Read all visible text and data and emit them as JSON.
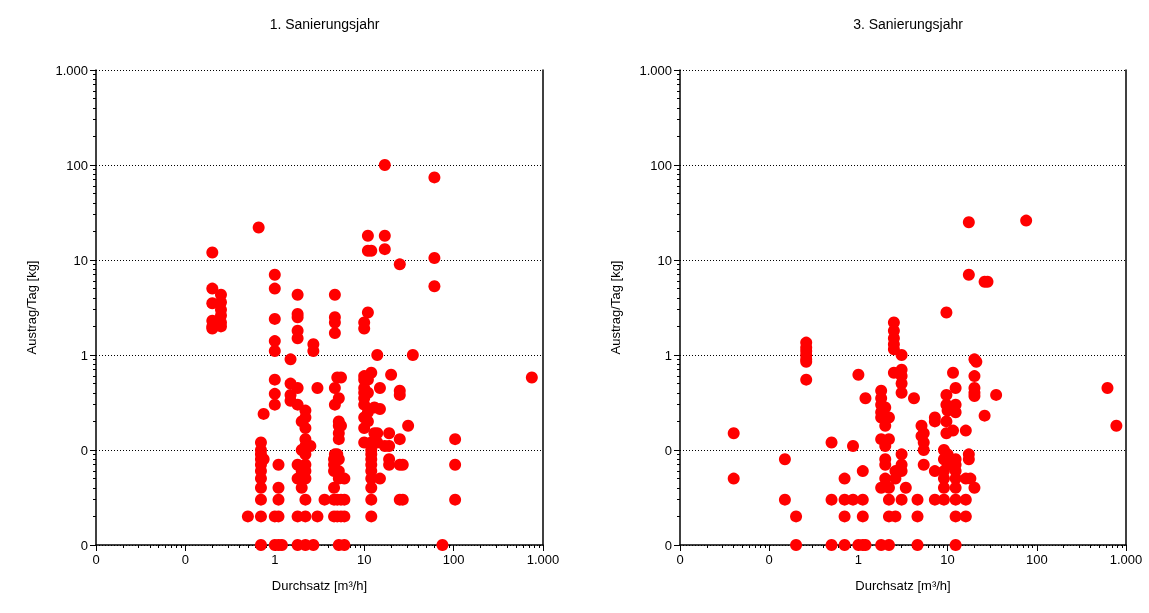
{
  "chart_data": [
    {
      "type": "scatter",
      "title": "1. Sanierungsjahr",
      "xlabel": "Durchsatz [m³/h]",
      "ylabel": "Austrag/Tag [kg]",
      "log": "xy",
      "grid": "y",
      "marker": "circle",
      "xlim": [
        0.01,
        1000
      ],
      "ylim": [
        0.01,
        1000
      ],
      "xticks": [
        {
          "value": 0.01,
          "label": "0"
        },
        {
          "value": 0.1,
          "label": "0"
        },
        1,
        10,
        100,
        {
          "value": 1000,
          "label": "1.000"
        }
      ],
      "yticks": [
        {
          "value": 0.01,
          "label": "0"
        },
        {
          "value": 0.1,
          "label": "0"
        },
        1,
        10,
        100,
        {
          "value": 1000,
          "label": "1.000"
        }
      ],
      "series": [
        {
          "color": "#ff0000",
          "x": [
            0.2,
            0.2,
            0.2,
            0.2,
            0.2,
            0.2,
            0.25,
            0.25,
            0.25,
            0.25,
            0.25,
            0.25,
            0.5,
            0.66,
            0.7,
            0.7,
            0.7,
            0.7,
            0.7,
            0.7,
            0.7,
            0.7,
            0.7,
            0.7,
            0.7,
            0.75,
            0.75,
            1,
            1,
            1,
            1,
            1,
            1,
            1,
            1,
            1,
            1,
            1.1,
            1.1,
            1.1,
            1.1,
            1.1,
            1.2,
            1.5,
            1.5,
            1.5,
            1.5,
            1.8,
            1.8,
            1.8,
            1.8,
            1.8,
            1.8,
            1.8,
            1.8,
            1.8,
            1.8,
            1.8,
            2,
            2,
            2,
            2,
            2.2,
            2.2,
            2.2,
            2.2,
            2.2,
            2.2,
            2.2,
            2.2,
            2.2,
            2.2,
            2.2,
            2.2,
            2.5,
            2.7,
            2.7,
            2.7,
            3,
            3,
            3.6,
            4.6,
            4.6,
            4.6,
            4.6,
            4.6,
            4.6,
            4.7,
            4.7,
            4.7,
            4.7,
            4.7,
            4.7,
            4.7,
            5,
            5,
            5,
            5,
            5.2,
            5.2,
            5.2,
            5.2,
            5.2,
            5.2,
            5.2,
            5.2,
            5.2,
            5.5,
            5.5,
            5.5,
            5.5,
            6,
            6,
            6,
            6,
            10,
            10,
            10,
            10,
            10,
            10,
            10,
            10,
            10,
            10,
            10,
            11,
            11,
            11,
            11,
            11,
            11,
            11,
            12,
            12,
            12,
            12,
            12,
            12,
            12,
            12,
            12,
            12,
            12,
            12,
            13,
            13,
            14,
            14,
            14,
            15,
            15,
            15,
            17,
            17,
            17,
            17,
            19,
            19,
            19,
            19,
            20,
            25,
            25,
            25,
            25,
            25,
            25,
            27,
            27,
            31,
            35,
            61,
            61,
            61,
            75,
            104,
            104,
            104,
            750
          ],
          "values": [
            12,
            5,
            3.5,
            2.3,
            2,
            1.9,
            4.3,
            3.6,
            3,
            2.6,
            2.2,
            2,
            0.02,
            22,
            0.12,
            0.1,
            0.09,
            0.08,
            0.07,
            0.06,
            0.05,
            0.04,
            0.03,
            0.02,
            0.01,
            0.08,
            0.24,
            7,
            5,
            2.4,
            1.4,
            1.1,
            0.55,
            0.39,
            0.3,
            0.02,
            0.01,
            0.07,
            0.04,
            0.03,
            0.02,
            0.01,
            0.01,
            0.9,
            0.5,
            0.38,
            0.33,
            4.3,
            2.7,
            2.5,
            1.8,
            1.5,
            0.45,
            0.3,
            0.07,
            0.05,
            0.02,
            0.01,
            0.2,
            0.1,
            0.06,
            0.04,
            0.26,
            0.22,
            0.17,
            0.13,
            0.11,
            0.09,
            0.07,
            0.06,
            0.05,
            0.03,
            0.02,
            0.01,
            0.11,
            1.3,
            1.1,
            0.01,
            0.45,
            0.02,
            0.03,
            0.08,
            0.07,
            0.06,
            0.04,
            0.03,
            0.02,
            4.3,
            2.5,
            2.2,
            1.7,
            0.45,
            0.3,
            0.09,
            0.58,
            0.09,
            0.03,
            0.02,
            0.35,
            0.2,
            0.18,
            0.15,
            0.13,
            0.08,
            0.06,
            0.05,
            0.01,
            0.58,
            0.18,
            0.03,
            0.02,
            0.05,
            0.03,
            0.02,
            0.01,
            2.2,
            1.9,
            0.6,
            0.55,
            0.45,
            0.4,
            0.35,
            0.3,
            0.22,
            0.17,
            0.12,
            18,
            12.5,
            2.8,
            0.55,
            0.4,
            0.25,
            0.2,
            12.5,
            0.65,
            0.12,
            0.1,
            0.09,
            0.08,
            0.07,
            0.06,
            0.05,
            0.04,
            0.03,
            0.02,
            0.28,
            0.15,
            1,
            0.15,
            0.12,
            0.45,
            0.27,
            0.05,
            100,
            18,
            13,
            0.11,
            0.15,
            0.11,
            0.08,
            0.07,
            0.62,
            9,
            0.42,
            0.38,
            0.13,
            0.07,
            0.03,
            0.07,
            0.03,
            0.18,
            1,
            74,
            10.5,
            5.3,
            0.01,
            0.13,
            0.07,
            0.03,
            0.58
          ]
        }
      ]
    },
    {
      "type": "scatter",
      "title": "3. Sanierungsjahr",
      "xlabel": "Durchsatz [m³/h]",
      "ylabel": "Austrag/Tag [kg]",
      "log": "xy",
      "grid": "y",
      "marker": "circle",
      "xlim": [
        0.01,
        1000
      ],
      "ylim": [
        0.01,
        1000
      ],
      "xticks": [
        {
          "value": 0.01,
          "label": "0"
        },
        {
          "value": 0.1,
          "label": "0"
        },
        1,
        10,
        100,
        {
          "value": 1000,
          "label": "1.000"
        }
      ],
      "yticks": [
        {
          "value": 0.01,
          "label": "0"
        },
        {
          "value": 0.1,
          "label": "0"
        },
        1,
        10,
        100,
        {
          "value": 1000,
          "label": "1.000"
        }
      ],
      "series": [
        {
          "color": "#ff0000",
          "x": [
            0.04,
            0.04,
            0.15,
            0.15,
            0.2,
            0.2,
            0.26,
            0.26,
            0.26,
            0.26,
            0.26,
            0.26,
            0.26,
            0.5,
            0.5,
            0.5,
            0.7,
            0.7,
            0.7,
            0.7,
            0.87,
            0.87,
            1,
            1,
            1.12,
            1.12,
            1.12,
            1.12,
            1.2,
            1.2,
            1.8,
            1.8,
            1.8,
            1.8,
            1.8,
            1.8,
            1.8,
            1.8,
            2,
            2,
            2,
            2,
            2,
            2,
            2.2,
            2.2,
            2.2,
            2.2,
            2.2,
            2.2,
            2.5,
            2.5,
            2.5,
            2.5,
            2.5,
            2.5,
            2.6,
            2.6,
            2.6,
            3.05,
            3.05,
            3.05,
            3.05,
            3.05,
            3.05,
            3.05,
            3.05,
            3.05,
            3.4,
            4.2,
            4.6,
            4.6,
            4.6,
            5.1,
            5.1,
            5.4,
            5.4,
            5.4,
            5.4,
            7.2,
            7.2,
            7.2,
            7.2,
            9.1,
            9.1,
            9.1,
            9.1,
            9.1,
            9.1,
            9.7,
            9.7,
            9.7,
            9.7,
            9.7,
            10,
            10,
            10,
            11.5,
            11.5,
            12.3,
            12.3,
            12.3,
            12.3,
            12.3,
            12.3,
            12.3,
            12.3,
            12.3,
            12.3,
            12.3,
            16,
            16,
            16,
            16,
            17.3,
            17.3,
            17.3,
            17.3,
            18,
            20,
            20,
            20,
            20,
            20,
            20,
            21,
            26,
            26,
            28,
            35,
            76,
            620,
            780
          ],
          "values": [
            0.15,
            0.05,
            0.08,
            0.03,
            0.02,
            0.01,
            1.35,
            1.2,
            1.1,
            1,
            0.9,
            0.85,
            0.55,
            0.12,
            0.03,
            0.01,
            0.05,
            0.03,
            0.02,
            0.01,
            0.11,
            0.03,
            0.62,
            0.01,
            0.06,
            0.03,
            0.02,
            0.01,
            0.35,
            0.01,
            0.42,
            0.35,
            0.3,
            0.25,
            0.22,
            0.13,
            0.04,
            0.01,
            0.28,
            0.18,
            0.11,
            0.08,
            0.07,
            0.05,
            0.22,
            0.13,
            0.04,
            0.03,
            0.02,
            0.01,
            2.2,
            1.8,
            1.5,
            1.3,
            1.15,
            0.65,
            0.06,
            0.05,
            0.02,
            1,
            0.7,
            0.6,
            0.5,
            0.4,
            0.09,
            0.07,
            0.06,
            0.03,
            0.04,
            0.35,
            0.03,
            0.02,
            0.01,
            0.18,
            0.14,
            0.15,
            0.12,
            0.1,
            0.07,
            0.22,
            0.2,
            0.06,
            0.03,
            0.1,
            0.08,
            0.06,
            0.05,
            0.04,
            0.03,
            2.8,
            0.38,
            0.3,
            0.2,
            0.15,
            0.26,
            0.09,
            0.07,
            0.65,
            0.16,
            0.45,
            0.3,
            0.25,
            0.08,
            0.07,
            0.06,
            0.05,
            0.04,
            0.03,
            0.02,
            0.01,
            0.16,
            0.05,
            0.03,
            0.02,
            25,
            7,
            0.09,
            0.08,
            0.05,
            0.9,
            0.6,
            0.45,
            0.4,
            0.37,
            0.04,
            0.85,
            5.9,
            0.23,
            5.9,
            0.38,
            26,
            0.45,
            0.18
          ]
        }
      ]
    }
  ]
}
